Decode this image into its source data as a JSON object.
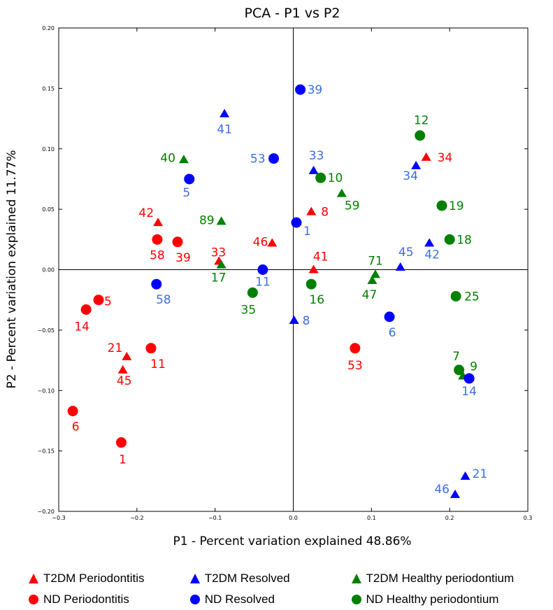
{
  "chart_data": {
    "type": "scatter",
    "title": "PCA - P1 vs P2",
    "xlabel": "P1 - Percent variation explained 48.86%",
    "ylabel": "P2 - Percent variation explained 11.77%",
    "xlim": [
      -0.3,
      0.3
    ],
    "ylim": [
      -0.2,
      0.2
    ],
    "xticks": [
      "−0.3",
      "−0.2",
      "−0.1",
      "0.0",
      "0.1",
      "0.2",
      "0.3"
    ],
    "yticks": [
      "−0.20",
      "−0.15",
      "−0.10",
      "−0.05",
      "0.00",
      "0.05",
      "0.10",
      "0.15",
      "0.20"
    ],
    "zero_lines": true,
    "grid": false,
    "legend_position": "bottom",
    "series": [
      {
        "name": "T2DM Periodontitis",
        "marker": "triangle",
        "color": "#ff0000",
        "points": [
          {
            "x": 0.17,
            "y": 0.093,
            "label": "34"
          },
          {
            "x": 0.023,
            "y": 0.048,
            "label": "8"
          },
          {
            "x": -0.173,
            "y": 0.039,
            "label": "42"
          },
          {
            "x": -0.027,
            "y": 0.022,
            "label": "46"
          },
          {
            "x": -0.095,
            "y": 0.007,
            "label": "33"
          },
          {
            "x": 0.026,
            "y": 0.0,
            "label": "41"
          },
          {
            "x": -0.213,
            "y": -0.072,
            "label": "21"
          },
          {
            "x": -0.218,
            "y": -0.083,
            "label": "45"
          }
        ]
      },
      {
        "name": "T2DM Resolved",
        "marker": "triangle",
        "color": "#0000ff",
        "points": [
          {
            "x": -0.088,
            "y": 0.129,
            "label": "41"
          },
          {
            "x": 0.026,
            "y": 0.082,
            "label": "33"
          },
          {
            "x": 0.157,
            "y": 0.086,
            "label": "34"
          },
          {
            "x": 0.174,
            "y": 0.022,
            "label": "42"
          },
          {
            "x": 0.137,
            "y": 0.002,
            "label": "45"
          },
          {
            "x": 0.001,
            "y": -0.042,
            "label": "8"
          },
          {
            "x": 0.22,
            "y": -0.171,
            "label": "21"
          },
          {
            "x": 0.207,
            "y": -0.186,
            "label": "46"
          }
        ]
      },
      {
        "name": "T2DM Healthy periodontium",
        "marker": "triangle",
        "color": "#008000",
        "points": [
          {
            "x": -0.14,
            "y": 0.091,
            "label": "40"
          },
          {
            "x": 0.062,
            "y": 0.063,
            "label": "59"
          },
          {
            "x": -0.092,
            "y": 0.04,
            "label": "89"
          },
          {
            "x": -0.092,
            "y": 0.004,
            "label": "17"
          },
          {
            "x": 0.105,
            "y": -0.004,
            "label": "71"
          },
          {
            "x": 0.101,
            "y": -0.009,
            "label": "47"
          },
          {
            "x": 0.217,
            "y": -0.088,
            "label": "9"
          }
        ]
      },
      {
        "name": "ND Periodontitis",
        "marker": "circle",
        "color": "#ff0000",
        "points": [
          {
            "x": -0.174,
            "y": 0.025,
            "label": "58"
          },
          {
            "x": -0.148,
            "y": 0.023,
            "label": "39"
          },
          {
            "x": -0.249,
            "y": -0.025,
            "label": "5"
          },
          {
            "x": -0.265,
            "y": -0.033,
            "label": "14"
          },
          {
            "x": -0.182,
            "y": -0.065,
            "label": "11"
          },
          {
            "x": 0.079,
            "y": -0.065,
            "label": "53"
          },
          {
            "x": -0.282,
            "y": -0.117,
            "label": "6"
          },
          {
            "x": -0.22,
            "y": -0.143,
            "label": "1"
          }
        ]
      },
      {
        "name": "ND Resolved",
        "marker": "circle",
        "color": "#0000ff",
        "points": [
          {
            "x": 0.009,
            "y": 0.149,
            "label": "39"
          },
          {
            "x": -0.025,
            "y": 0.092,
            "label": "53"
          },
          {
            "x": -0.133,
            "y": 0.075,
            "label": "5"
          },
          {
            "x": 0.004,
            "y": 0.039,
            "label": "1"
          },
          {
            "x": -0.039,
            "y": 0.0,
            "label": "11"
          },
          {
            "x": -0.175,
            "y": -0.012,
            "label": "58"
          },
          {
            "x": 0.123,
            "y": -0.039,
            "label": "6"
          },
          {
            "x": 0.225,
            "y": -0.09,
            "label": "14"
          }
        ]
      },
      {
        "name": "ND Healthy periodontium",
        "marker": "circle",
        "color": "#008000",
        "points": [
          {
            "x": 0.162,
            "y": 0.111,
            "label": "12"
          },
          {
            "x": 0.035,
            "y": 0.076,
            "label": "10"
          },
          {
            "x": 0.19,
            "y": 0.053,
            "label": "19"
          },
          {
            "x": 0.2,
            "y": 0.025,
            "label": "18"
          },
          {
            "x": -0.052,
            "y": -0.019,
            "label": "35"
          },
          {
            "x": 0.023,
            "y": -0.012,
            "label": "16"
          },
          {
            "x": 0.208,
            "y": -0.022,
            "label": "25"
          },
          {
            "x": 0.212,
            "y": -0.083,
            "label": "7"
          }
        ]
      }
    ]
  }
}
